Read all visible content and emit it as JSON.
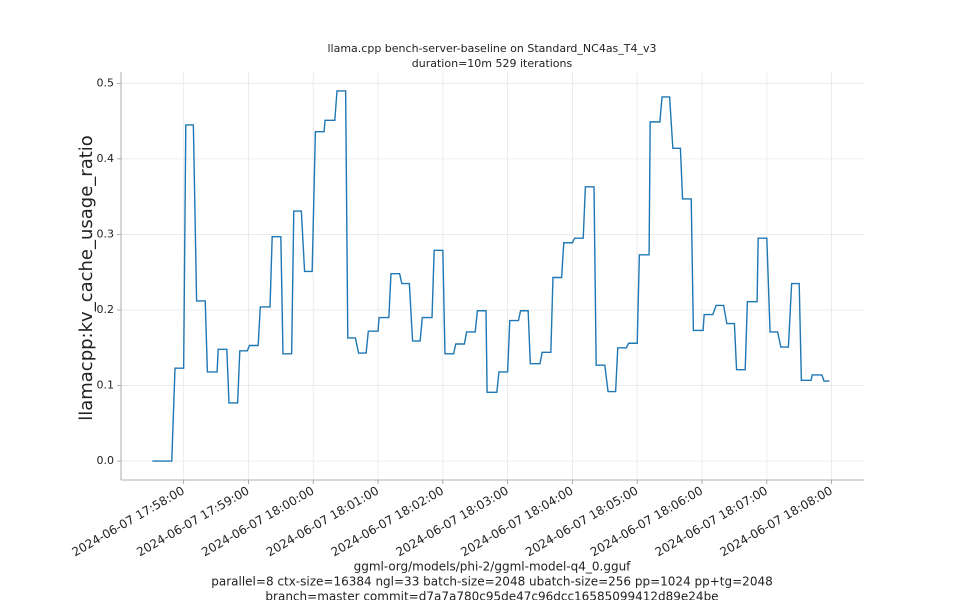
{
  "chart_data": {
    "type": "line",
    "title": "llama.cpp bench-server-baseline on Standard_NC4as_T4_v3",
    "subtitle": "duration=10m 529 iterations",
    "ylabel": "llamacpp:kv_cache_usage_ratio",
    "footer": [
      "ggml-org/models/phi-2/ggml-model-q4_0.gguf",
      "parallel=8 ctx-size=16384 ngl=33 batch-size=2048 ubatch-size=256 pp=1024 pp+tg=2048",
      "branch=master commit=d7a7a780c95de47c96dcc16585099412d89e24be"
    ],
    "color": "#1f77b4",
    "grid": true,
    "xlim": [
      "2024-06-07 17:57:02",
      "2024-06-07 18:08:30"
    ],
    "xticks": [
      "2024-06-07 17:58:00",
      "2024-06-07 17:59:00",
      "2024-06-07 18:00:00",
      "2024-06-07 18:01:00",
      "2024-06-07 18:02:00",
      "2024-06-07 18:03:00",
      "2024-06-07 18:04:00",
      "2024-06-07 18:05:00",
      "2024-06-07 18:06:00",
      "2024-06-07 18:07:00",
      "2024-06-07 18:08:00"
    ],
    "ylim": [
      -0.025,
      0.515
    ],
    "yticks": [
      {
        "value": 0,
        "label": "0.0"
      },
      0.1,
      0.2,
      0.3,
      0.4,
      0.5
    ],
    "x": [
      "2024-06-07 17:57:31",
      "2024-06-07 17:57:49",
      "2024-06-07 17:57:52",
      "2024-06-07 17:58:00",
      "2024-06-07 17:58:02",
      "2024-06-07 17:58:09",
      "2024-06-07 17:58:12",
      "2024-06-07 17:58:20",
      "2024-06-07 17:58:22",
      "2024-06-07 17:58:31",
      "2024-06-07 17:58:32",
      "2024-06-07 17:58:40",
      "2024-06-07 17:58:42",
      "2024-06-07 17:58:50",
      "2024-06-07 17:58:52",
      "2024-06-07 17:58:59",
      "2024-06-07 17:59:01",
      "2024-06-07 17:59:09",
      "2024-06-07 17:59:11",
      "2024-06-07 17:59:20",
      "2024-06-07 17:59:22",
      "2024-06-07 17:59:30",
      "2024-06-07 17:59:32",
      "2024-06-07 17:59:40",
      "2024-06-07 17:59:42",
      "2024-06-07 17:59:49",
      "2024-06-07 17:59:52",
      "2024-06-07 17:59:59",
      "2024-06-07 18:00:02",
      "2024-06-07 18:00:10",
      "2024-06-07 18:00:11",
      "2024-06-07 18:00:20",
      "2024-06-07 18:00:22",
      "2024-06-07 18:00:30",
      "2024-06-07 18:00:32",
      "2024-06-07 18:00:39",
      "2024-06-07 18:00:42",
      "2024-06-07 18:00:49",
      "2024-06-07 18:00:51",
      "2024-06-07 18:01:00",
      "2024-06-07 18:01:01",
      "2024-06-07 18:01:10",
      "2024-06-07 18:01:12",
      "2024-06-07 18:01:20",
      "2024-06-07 18:01:22",
      "2024-06-07 18:01:29",
      "2024-06-07 18:01:32",
      "2024-06-07 18:01:39",
      "2024-06-07 18:01:41",
      "2024-06-07 18:01:50",
      "2024-06-07 18:01:52",
      "2024-06-07 18:02:00",
      "2024-06-07 18:02:02",
      "2024-06-07 18:02:10",
      "2024-06-07 18:02:12",
      "2024-06-07 18:02:20",
      "2024-06-07 18:02:22",
      "2024-06-07 18:02:30",
      "2024-06-07 18:02:32",
      "2024-06-07 18:02:40",
      "2024-06-07 18:02:41",
      "2024-06-07 18:02:50",
      "2024-06-07 18:02:52",
      "2024-06-07 18:03:00",
      "2024-06-07 18:03:02",
      "2024-06-07 18:03:10",
      "2024-06-07 18:03:12",
      "2024-06-07 18:03:19",
      "2024-06-07 18:03:21",
      "2024-06-07 18:03:30",
      "2024-06-07 18:03:32",
      "2024-06-07 18:03:40",
      "2024-06-07 18:03:42",
      "2024-06-07 18:03:50",
      "2024-06-07 18:03:52",
      "2024-06-07 18:04:00",
      "2024-06-07 18:04:02",
      "2024-06-07 18:04:10",
      "2024-06-07 18:04:12",
      "2024-06-07 18:04:20",
      "2024-06-07 18:04:22",
      "2024-06-07 18:04:30",
      "2024-06-07 18:04:33",
      "2024-06-07 18:04:40",
      "2024-06-07 18:04:42",
      "2024-06-07 18:04:50",
      "2024-06-07 18:04:52",
      "2024-06-07 18:05:00",
      "2024-06-07 18:05:02",
      "2024-06-07 18:05:11",
      "2024-06-07 18:05:12",
      "2024-06-07 18:05:21",
      "2024-06-07 18:05:23",
      "2024-06-07 18:05:30",
      "2024-06-07 18:05:33",
      "2024-06-07 18:05:40",
      "2024-06-07 18:05:42",
      "2024-06-07 18:05:50",
      "2024-06-07 18:05:52",
      "2024-06-07 18:06:01",
      "2024-06-07 18:06:02",
      "2024-06-07 18:06:10",
      "2024-06-07 18:06:13",
      "2024-06-07 18:06:20",
      "2024-06-07 18:06:23",
      "2024-06-07 18:06:30",
      "2024-06-07 18:06:32",
      "2024-06-07 18:06:40",
      "2024-06-07 18:06:42",
      "2024-06-07 18:06:51",
      "2024-06-07 18:06:52",
      "2024-06-07 18:07:00",
      "2024-06-07 18:07:03",
      "2024-06-07 18:07:10",
      "2024-06-07 18:07:13",
      "2024-06-07 18:07:20",
      "2024-06-07 18:07:23",
      "2024-06-07 18:07:30",
      "2024-06-07 18:07:32",
      "2024-06-07 18:07:41",
      "2024-06-07 18:07:42",
      "2024-06-07 18:07:51",
      "2024-06-07 18:07:53",
      "2024-06-07 18:07:58"
    ],
    "values": [
      0,
      0,
      0.123,
      0.123,
      0.445,
      0.445,
      0.212,
      0.212,
      0.118,
      0.118,
      0.148,
      0.148,
      0.077,
      0.077,
      0.146,
      0.146,
      0.153,
      0.153,
      0.204,
      0.204,
      0.297,
      0.297,
      0.142,
      0.142,
      0.331,
      0.331,
      0.251,
      0.251,
      0.436,
      0.436,
      0.451,
      0.451,
      0.49,
      0.49,
      0.163,
      0.163,
      0.143,
      0.143,
      0.172,
      0.172,
      0.19,
      0.19,
      0.248,
      0.248,
      0.235,
      0.235,
      0.159,
      0.159,
      0.19,
      0.19,
      0.279,
      0.279,
      0.142,
      0.142,
      0.155,
      0.155,
      0.171,
      0.171,
      0.199,
      0.199,
      0.091,
      0.091,
      0.118,
      0.118,
      0.186,
      0.186,
      0.199,
      0.199,
      0.129,
      0.129,
      0.144,
      0.144,
      0.243,
      0.243,
      0.289,
      0.289,
      0.295,
      0.295,
      0.363,
      0.363,
      0.127,
      0.127,
      0.092,
      0.092,
      0.15,
      0.15,
      0.156,
      0.156,
      0.273,
      0.273,
      0.449,
      0.449,
      0.482,
      0.482,
      0.414,
      0.414,
      0.347,
      0.347,
      0.173,
      0.173,
      0.194,
      0.194,
      0.206,
      0.206,
      0.182,
      0.182,
      0.121,
      0.121,
      0.211,
      0.211,
      0.295,
      0.295,
      0.171,
      0.171,
      0.151,
      0.151,
      0.235,
      0.235,
      0.107,
      0.107,
      0.114,
      0.114,
      0.106,
      0.106
    ]
  }
}
